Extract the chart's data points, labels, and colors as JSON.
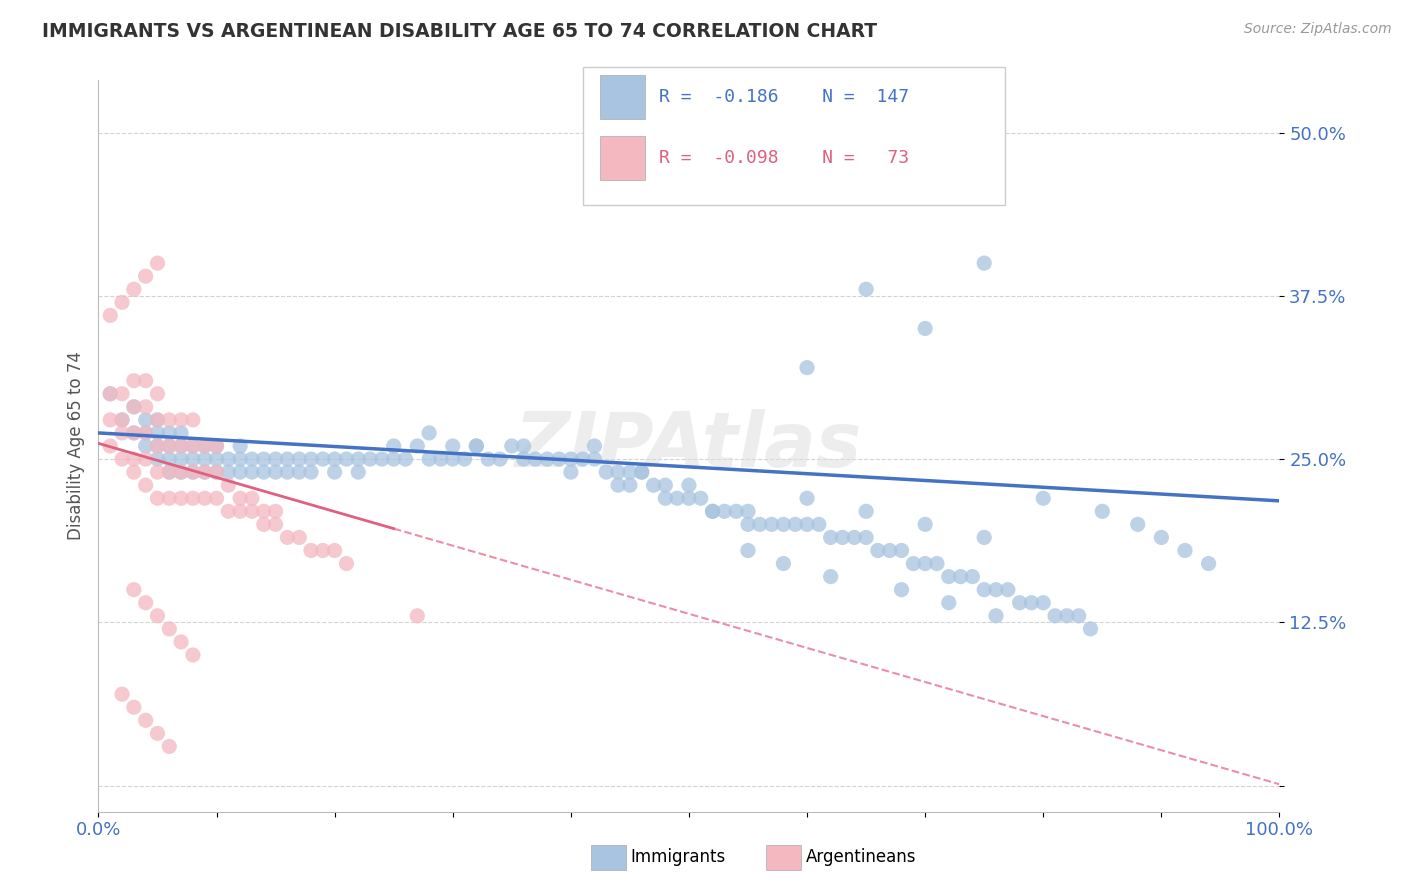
{
  "title": "IMMIGRANTS VS ARGENTINEAN DISABILITY AGE 65 TO 74 CORRELATION CHART",
  "source": "Source: ZipAtlas.com",
  "ylabel": "Disability Age 65 to 74",
  "xlim": [
    0.0,
    1.0
  ],
  "ylim": [
    -0.02,
    0.54
  ],
  "yticks": [
    0.0,
    0.125,
    0.25,
    0.375,
    0.5
  ],
  "ytick_labels": [
    "",
    "12.5%",
    "25.0%",
    "37.5%",
    "50.0%"
  ],
  "xticks": [
    0.0,
    0.1,
    0.2,
    0.3,
    0.4,
    0.5,
    0.6,
    0.7,
    0.8,
    0.9,
    1.0
  ],
  "xtick_labels": [
    "0.0%",
    "",
    "",
    "",
    "",
    "",
    "",
    "",
    "",
    "",
    "100.0%"
  ],
  "immigrants_color": "#a8c4e0",
  "argentineans_color": "#f4b8c1",
  "trendline_immigrants_color": "#4472c4",
  "trendline_argentineans_color": "#e06080",
  "watermark": "ZIPAtlas",
  "background_color": "#ffffff",
  "grid_color": "#c8c8c8",
  "title_color": "#333333",
  "source_color": "#999999",
  "axis_label_color": "#555555",
  "tick_label_color": "#4472c4",
  "immigrants_R": -0.186,
  "immigrants_N": 147,
  "argentineans_R": -0.098,
  "argentineans_N": 73,
  "immigrants_x": [
    0.01,
    0.02,
    0.03,
    0.03,
    0.04,
    0.04,
    0.04,
    0.05,
    0.05,
    0.05,
    0.05,
    0.06,
    0.06,
    0.06,
    0.06,
    0.07,
    0.07,
    0.07,
    0.07,
    0.08,
    0.08,
    0.08,
    0.09,
    0.09,
    0.09,
    0.1,
    0.1,
    0.1,
    0.11,
    0.11,
    0.12,
    0.12,
    0.12,
    0.13,
    0.13,
    0.14,
    0.14,
    0.15,
    0.15,
    0.16,
    0.16,
    0.17,
    0.17,
    0.18,
    0.18,
    0.19,
    0.2,
    0.2,
    0.21,
    0.22,
    0.22,
    0.23,
    0.24,
    0.25,
    0.25,
    0.26,
    0.27,
    0.28,
    0.29,
    0.3,
    0.3,
    0.31,
    0.32,
    0.33,
    0.34,
    0.35,
    0.36,
    0.37,
    0.38,
    0.39,
    0.4,
    0.41,
    0.42,
    0.43,
    0.44,
    0.45,
    0.46,
    0.47,
    0.48,
    0.49,
    0.5,
    0.51,
    0.52,
    0.53,
    0.54,
    0.55,
    0.56,
    0.57,
    0.58,
    0.59,
    0.6,
    0.61,
    0.62,
    0.63,
    0.64,
    0.65,
    0.66,
    0.67,
    0.68,
    0.69,
    0.7,
    0.71,
    0.72,
    0.73,
    0.74,
    0.75,
    0.76,
    0.77,
    0.78,
    0.79,
    0.8,
    0.81,
    0.82,
    0.83,
    0.84,
    0.6,
    0.65,
    0.7,
    0.75,
    0.55,
    0.58,
    0.62,
    0.68,
    0.72,
    0.76,
    0.8,
    0.85,
    0.88,
    0.9,
    0.92,
    0.94,
    0.45,
    0.48,
    0.52,
    0.55,
    0.42,
    0.46,
    0.5,
    0.6,
    0.65,
    0.7,
    0.75,
    0.28,
    0.32,
    0.36,
    0.4,
    0.44
  ],
  "immigrants_y": [
    0.3,
    0.28,
    0.27,
    0.29,
    0.26,
    0.27,
    0.28,
    0.25,
    0.26,
    0.27,
    0.28,
    0.24,
    0.25,
    0.26,
    0.27,
    0.24,
    0.25,
    0.26,
    0.27,
    0.24,
    0.25,
    0.26,
    0.24,
    0.25,
    0.26,
    0.24,
    0.25,
    0.26,
    0.24,
    0.25,
    0.24,
    0.25,
    0.26,
    0.24,
    0.25,
    0.24,
    0.25,
    0.24,
    0.25,
    0.24,
    0.25,
    0.24,
    0.25,
    0.24,
    0.25,
    0.25,
    0.24,
    0.25,
    0.25,
    0.24,
    0.25,
    0.25,
    0.25,
    0.25,
    0.26,
    0.25,
    0.26,
    0.25,
    0.25,
    0.26,
    0.25,
    0.25,
    0.26,
    0.25,
    0.25,
    0.26,
    0.26,
    0.25,
    0.25,
    0.25,
    0.25,
    0.25,
    0.25,
    0.24,
    0.24,
    0.24,
    0.24,
    0.23,
    0.23,
    0.22,
    0.22,
    0.22,
    0.21,
    0.21,
    0.21,
    0.21,
    0.2,
    0.2,
    0.2,
    0.2,
    0.2,
    0.2,
    0.19,
    0.19,
    0.19,
    0.19,
    0.18,
    0.18,
    0.18,
    0.17,
    0.17,
    0.17,
    0.16,
    0.16,
    0.16,
    0.15,
    0.15,
    0.15,
    0.14,
    0.14,
    0.14,
    0.13,
    0.13,
    0.13,
    0.12,
    0.32,
    0.38,
    0.35,
    0.4,
    0.18,
    0.17,
    0.16,
    0.15,
    0.14,
    0.13,
    0.22,
    0.21,
    0.2,
    0.19,
    0.18,
    0.17,
    0.23,
    0.22,
    0.21,
    0.2,
    0.26,
    0.24,
    0.23,
    0.22,
    0.21,
    0.2,
    0.19,
    0.27,
    0.26,
    0.25,
    0.24,
    0.23
  ],
  "argentineans_x": [
    0.01,
    0.01,
    0.01,
    0.02,
    0.02,
    0.02,
    0.02,
    0.03,
    0.03,
    0.03,
    0.03,
    0.03,
    0.04,
    0.04,
    0.04,
    0.04,
    0.04,
    0.05,
    0.05,
    0.05,
    0.05,
    0.05,
    0.06,
    0.06,
    0.06,
    0.06,
    0.07,
    0.07,
    0.07,
    0.07,
    0.08,
    0.08,
    0.08,
    0.08,
    0.09,
    0.09,
    0.09,
    0.1,
    0.1,
    0.1,
    0.11,
    0.11,
    0.12,
    0.12,
    0.13,
    0.13,
    0.14,
    0.14,
    0.15,
    0.15,
    0.16,
    0.17,
    0.18,
    0.19,
    0.2,
    0.21,
    0.03,
    0.04,
    0.05,
    0.06,
    0.07,
    0.08,
    0.02,
    0.03,
    0.04,
    0.05,
    0.06,
    0.01,
    0.02,
    0.03,
    0.04,
    0.05,
    0.27
  ],
  "argentineans_y": [
    0.26,
    0.28,
    0.3,
    0.25,
    0.27,
    0.28,
    0.3,
    0.24,
    0.25,
    0.27,
    0.29,
    0.31,
    0.23,
    0.25,
    0.27,
    0.29,
    0.31,
    0.22,
    0.24,
    0.26,
    0.28,
    0.3,
    0.22,
    0.24,
    0.26,
    0.28,
    0.22,
    0.24,
    0.26,
    0.28,
    0.22,
    0.24,
    0.26,
    0.28,
    0.22,
    0.24,
    0.26,
    0.22,
    0.24,
    0.26,
    0.21,
    0.23,
    0.21,
    0.22,
    0.21,
    0.22,
    0.2,
    0.21,
    0.2,
    0.21,
    0.19,
    0.19,
    0.18,
    0.18,
    0.18,
    0.17,
    0.15,
    0.14,
    0.13,
    0.12,
    0.11,
    0.1,
    0.07,
    0.06,
    0.05,
    0.04,
    0.03,
    0.36,
    0.37,
    0.38,
    0.39,
    0.4,
    0.13
  ],
  "arg_trendline_start_y": 0.262,
  "arg_trendline_end_y": 0.001,
  "imm_trendline_start_y": 0.27,
  "imm_trendline_end_y": 0.218
}
